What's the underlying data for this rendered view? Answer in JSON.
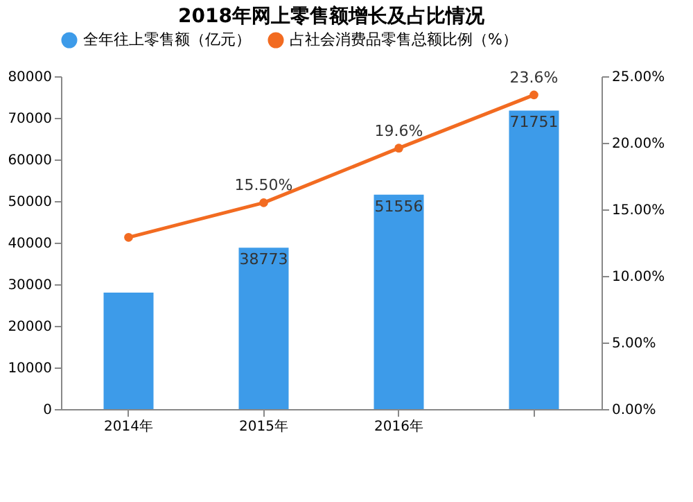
{
  "chart_data": {
    "type": "bar",
    "title": "2018年网上零售额增长及占比情况",
    "categories": [
      "2014年",
      "2015年",
      "2016年",
      null
    ],
    "series": [
      {
        "name": "全年往上零售额（亿元）",
        "color": "#3d9be9",
        "values": [
          28000,
          38773,
          51556,
          71751
        ],
        "value_labels": [
          null,
          "38773",
          "51556",
          "71751"
        ]
      },
      {
        "name": "占社会消费品零售总额比例（%）",
        "type": "line",
        "axis": "y2",
        "color": "#f26b21",
        "marker": "circle",
        "values": [
          12.9,
          15.5,
          19.6,
          23.6
        ],
        "value_labels": [
          null,
          "15.50%",
          "19.6%",
          "23.6%"
        ]
      }
    ],
    "ylim": [
      0,
      80000
    ],
    "yticks": [
      0,
      10000,
      20000,
      30000,
      40000,
      50000,
      60000,
      70000,
      80000
    ],
    "y2lim": [
      0,
      25
    ],
    "y2ticks": [
      {
        "value": 0,
        "label": "0.00%"
      },
      {
        "value": 5,
        "label": "5.00%"
      },
      {
        "value": 10,
        "label": "10.00%"
      },
      {
        "value": 15,
        "label": "15.00%"
      },
      {
        "value": 20,
        "label": "20.00%"
      },
      {
        "value": 25,
        "label": "25.00%"
      }
    ],
    "legend": "top",
    "grid": false
  }
}
